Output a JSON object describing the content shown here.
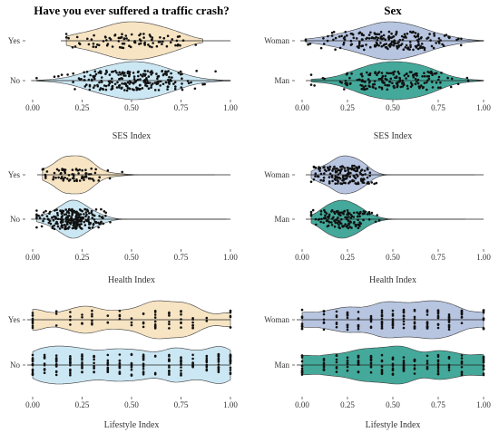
{
  "colors": {
    "crash_yes": "#f7e3c0",
    "crash_no": "#c9e6f3",
    "sex_woman": "#b4c2e0",
    "sex_man": "#3aa595",
    "points": "#111111",
    "outline": "#333333"
  },
  "chart_data": [
    {
      "type": "violin",
      "column": 0,
      "title": "Have you ever suffered a traffic crash?",
      "xlabel": "SES Index",
      "xlim": [
        0,
        1
      ],
      "xticks": [
        "0.00",
        "0.25",
        "0.50",
        "0.75",
        "1.00"
      ],
      "groups": [
        {
          "label": "Yes",
          "color_key": "crash_yes",
          "mean": 0.5,
          "sd": 0.16,
          "n": 90,
          "jitter": 8,
          "x_range": [
            0.17,
            0.86
          ]
        },
        {
          "label": "No",
          "color_key": "crash_no",
          "mean": 0.5,
          "sd": 0.17,
          "n": 230,
          "jitter": 11,
          "x_range": [
            0.02,
            1.0
          ]
        }
      ]
    },
    {
      "type": "violin",
      "column": 1,
      "title": "Sex",
      "xlabel": "SES Index",
      "xlim": [
        0,
        1
      ],
      "xticks": [
        "0.00",
        "0.25",
        "0.50",
        "0.75",
        "1.00"
      ],
      "groups": [
        {
          "label": "Woman",
          "color_key": "sex_woman",
          "mean": 0.48,
          "sd": 0.17,
          "n": 200,
          "jitter": 10,
          "x_range": [
            0.02,
            1.0
          ]
        },
        {
          "label": "Man",
          "color_key": "sex_man",
          "mean": 0.5,
          "sd": 0.17,
          "n": 180,
          "jitter": 10,
          "x_range": [
            0.05,
            1.0
          ]
        }
      ]
    },
    {
      "type": "violin",
      "column": 0,
      "xlabel": "Health Index",
      "xlim": [
        0,
        1
      ],
      "xticks": [
        "0.00",
        "0.25",
        "0.50",
        "0.75",
        "1.00"
      ],
      "groups": [
        {
          "label": "Yes",
          "color_key": "crash_yes",
          "mean": 0.2,
          "sd": 0.08,
          "n": 70,
          "jitter": 7,
          "x_range": [
            0.05,
            0.92
          ]
        },
        {
          "label": "No",
          "color_key": "crash_no",
          "mean": 0.2,
          "sd": 0.09,
          "n": 240,
          "jitter": 11,
          "x_range": [
            0.02,
            0.98
          ]
        }
      ]
    },
    {
      "type": "violin",
      "column": 1,
      "xlabel": "Health Index",
      "xlim": [
        0,
        1
      ],
      "xticks": [
        "0.00",
        "0.25",
        "0.50",
        "0.75",
        "1.00"
      ],
      "groups": [
        {
          "label": "Woman",
          "color_key": "sex_woman",
          "mean": 0.22,
          "sd": 0.08,
          "n": 160,
          "jitter": 10,
          "x_range": [
            0.05,
            0.95
          ]
        },
        {
          "label": "Man",
          "color_key": "sex_man",
          "mean": 0.22,
          "sd": 0.09,
          "n": 130,
          "jitter": 10,
          "x_range": [
            0.05,
            0.9
          ]
        }
      ]
    },
    {
      "type": "violin",
      "column": 0,
      "xlabel": "Lifestyle Index",
      "xlim": [
        0,
        1
      ],
      "xticks": [
        "0.00",
        "0.25",
        "0.50",
        "0.75",
        "1.00"
      ],
      "groups": [
        {
          "label": "Yes",
          "color_key": "crash_yes",
          "discrete": [
            0.0,
            0.12,
            0.19,
            0.25,
            0.3,
            0.38,
            0.44,
            0.5,
            0.56,
            0.62,
            0.69,
            0.75,
            0.81,
            0.88,
            1.0
          ],
          "n": 80,
          "jitter": 10,
          "x_range": [
            0,
            1
          ]
        },
        {
          "label": "No",
          "color_key": "crash_no",
          "discrete": [
            0.0,
            0.06,
            0.12,
            0.19,
            0.25,
            0.31,
            0.38,
            0.44,
            0.5,
            0.56,
            0.62,
            0.69,
            0.75,
            0.81,
            0.88,
            0.94,
            1.0
          ],
          "n": 210,
          "jitter": 12,
          "x_range": [
            0,
            1
          ]
        }
      ]
    },
    {
      "type": "violin",
      "column": 1,
      "xlabel": "Lifestyle Index",
      "xlim": [
        0,
        1
      ],
      "xticks": [
        "0.00",
        "0.25",
        "0.50",
        "0.75",
        "1.00"
      ],
      "groups": [
        {
          "label": "Woman",
          "color_key": "sex_woman",
          "discrete": [
            0.0,
            0.12,
            0.19,
            0.25,
            0.31,
            0.38,
            0.44,
            0.5,
            0.56,
            0.62,
            0.69,
            0.75,
            0.81,
            0.88,
            1.0
          ],
          "n": 150,
          "jitter": 11,
          "x_range": [
            0,
            1
          ]
        },
        {
          "label": "Man",
          "color_key": "sex_man",
          "discrete": [
            0.0,
            0.12,
            0.19,
            0.25,
            0.31,
            0.38,
            0.44,
            0.5,
            0.56,
            0.62,
            0.69,
            0.75,
            0.81,
            0.88,
            1.0
          ],
          "n": 150,
          "jitter": 11,
          "x_range": [
            0,
            1
          ]
        }
      ]
    }
  ]
}
